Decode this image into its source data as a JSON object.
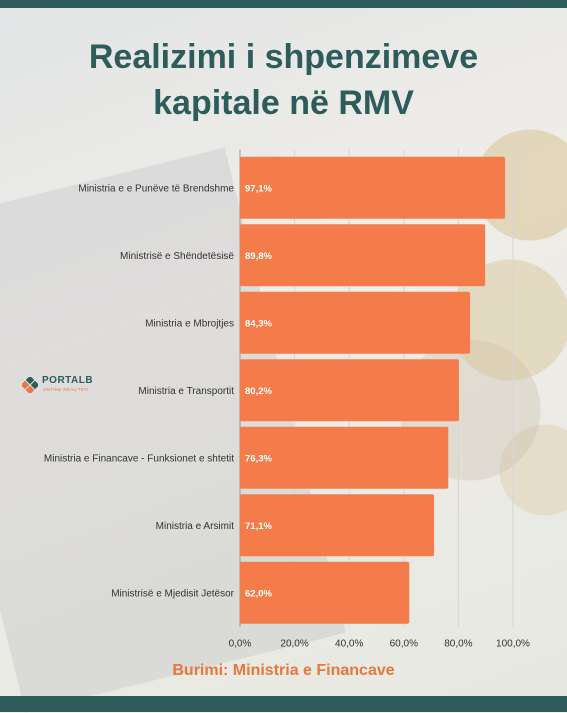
{
  "title": [
    "Realizimi i shpenzimeve",
    "kapitale në RMV"
  ],
  "source": "Burimi: Ministria e Financave",
  "logo": {
    "name": "PORTALB",
    "tagline": "ONTINE REALITETI"
  },
  "colors": {
    "bar": "#f47c4a",
    "title": "#2d5c5b",
    "source": "#e8763f",
    "frame": "#2e5c5a"
  },
  "chart_data": {
    "type": "bar",
    "orientation": "horizontal",
    "categories": [
      "Ministria e e Punëve të Brendshme",
      "Ministrisë e Shëndetësisë",
      "Ministria e Mbrojtjes",
      "Ministria e Transportit",
      "Ministria e Financave - Funksionet e shtetit",
      "Ministria e Arsimit",
      "Ministrisë e Mjedisit Jetësor"
    ],
    "values": [
      97.1,
      89.8,
      84.3,
      80.2,
      76.3,
      71.1,
      62.0
    ],
    "value_labels": [
      "97,1%",
      "89,8%",
      "84,3%",
      "80,2%",
      "76,3%",
      "71,1%",
      "62,0%"
    ],
    "xlim": [
      0,
      100
    ],
    "ticks": [
      0,
      20,
      40,
      60,
      80,
      100
    ],
    "tick_labels": [
      "0,0%",
      "20,0%",
      "40,0%",
      "60,0%",
      "80,0%",
      "100,0%"
    ],
    "grid": true
  }
}
